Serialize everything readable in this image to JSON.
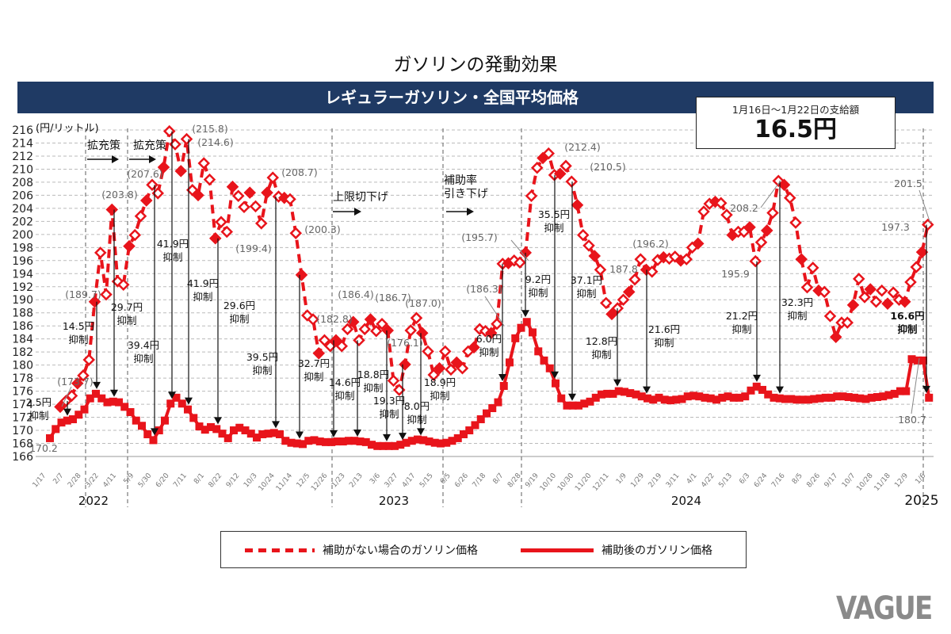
{
  "page": {
    "title": "ガソリンの発動効果",
    "band_title": "レギュラーガソリン・全国平均価格",
    "payment_box": {
      "period": "1月16日～1月22日の支給額",
      "amount": "16.5円"
    },
    "logo": "VAGUE"
  },
  "colors": {
    "series": "#e8141b",
    "band": "#1f3a64",
    "grid": "#bbbbbb",
    "annotation": "#222222",
    "value_label": "#666666"
  },
  "chart_data": {
    "type": "line",
    "ylabel": "(円/リットル)",
    "ylim": [
      166,
      216
    ],
    "yticks": [
      166,
      168,
      170,
      172,
      174,
      176,
      178,
      180,
      182,
      184,
      186,
      188,
      190,
      192,
      194,
      196,
      198,
      200,
      202,
      204,
      206,
      208,
      210,
      212,
      214,
      216
    ],
    "grid": true,
    "x_tick_labels": [
      "1/17",
      "2/7",
      "2/28",
      "3/22",
      "4/11",
      "5/9",
      "5/30",
      "6/20",
      "7/11",
      "8/1",
      "8/22",
      "9/12",
      "10/3",
      "10/24",
      "11/14",
      "12/5",
      "12/26",
      "1/23",
      "2/13",
      "3/6",
      "3/27",
      "4/17",
      "5/15",
      "6/5",
      "6/26",
      "7/18",
      "8/7",
      "8/28",
      "9/19",
      "10/10",
      "10/30",
      "11/20",
      "12/11",
      "1/9",
      "1/29",
      "2/19",
      "3/11",
      "4/1",
      "4/22",
      "5/13",
      "6/3",
      "6/24",
      "7/16",
      "8/5",
      "8/26",
      "9/17",
      "10/7",
      "10/28",
      "11/18",
      "12/9",
      "1/6"
    ],
    "year_labels": [
      "2022",
      "2023",
      "2024",
      "2025"
    ],
    "legend_placement": "bottom",
    "series": [
      {
        "name": "補助がない場合のガソリン価格",
        "style": "dashed-diamond",
        "values": [
          173.6,
          174.5,
          175.3,
          177.2,
          178.4,
          180.8,
          189.7,
          197.2,
          190.8,
          203.8,
          192.8,
          192.3,
          198.2,
          199.9,
          202.8,
          205.2,
          207.6,
          206.3,
          210.3,
          215.8,
          213.8,
          209.7,
          214.6,
          206.8,
          206.0,
          210.9,
          208.4,
          199.4,
          201.9,
          200.4,
          207.3,
          205.9,
          204.2,
          206.4,
          204.3,
          201.7,
          206.4,
          208.7,
          205.8,
          205.6,
          205.4,
          200.2,
          193.8,
          187.6,
          187.0,
          181.8,
          183.8,
          182.9,
          183.8,
          182.9,
          185.5,
          186.6,
          183.8,
          185.5,
          187.0,
          185.2,
          186.3,
          185.3,
          177.6,
          176.2,
          180.1,
          185.3,
          187.2,
          184.9,
          182.1,
          178.5,
          179.5,
          182.1,
          179.3,
          180.4,
          179.5,
          182.1,
          182.7,
          185.5,
          185.2,
          184.9,
          186.3,
          195.5,
          195.6,
          196.0,
          195.7,
          197.2,
          205.9,
          210.2,
          211.7,
          212.4,
          209.1,
          209.3,
          210.5,
          208.1,
          204.5,
          199.9,
          198.3,
          196.7,
          194.6,
          189.5,
          187.8,
          188.7,
          190.0,
          191.2,
          193.1,
          196.2,
          194.6,
          194.3,
          196.1,
          196.5,
          196.3,
          196.6,
          196.0,
          196.2,
          198.0,
          198.6,
          203.5,
          204.7,
          205.0,
          204.8,
          203.0,
          199.9,
          200.4,
          200.4,
          201.1,
          195.9,
          198.8,
          200.6,
          203.3,
          208.2,
          207.6,
          205.6,
          201.8,
          196.2,
          191.9,
          194.9,
          191.4,
          191.2,
          187.5,
          184.3,
          186.5,
          186.5,
          189.2,
          193.2,
          190.4,
          191.6,
          189.7,
          191.4,
          189.4,
          191.1,
          190.0,
          189.7,
          192.7,
          195.0,
          197.3,
          201.5
        ]
      },
      {
        "name": "補助後のガソリン価格",
        "style": "solid-square",
        "values": [
          168.8,
          170.2,
          171.2,
          171.5,
          171.7,
          172.4,
          173.2,
          174.9,
          175.6,
          174.9,
          174.3,
          174.4,
          174.3,
          173.6,
          172.8,
          171.5,
          170.7,
          169.4,
          168.5,
          170.0,
          171.5,
          174.1,
          175.0,
          174.1,
          173.2,
          171.9,
          170.6,
          170.1,
          170.5,
          170.2,
          169.5,
          168.8,
          170.0,
          170.4,
          170.0,
          169.5,
          168.9,
          169.4,
          169.5,
          169.6,
          169.4,
          168.4,
          168.1,
          168.0,
          167.9,
          168.4,
          168.5,
          168.3,
          168.2,
          168.2,
          168.3,
          168.3,
          168.4,
          168.4,
          168.3,
          168.2,
          167.8,
          167.6,
          167.6,
          167.6,
          167.6,
          167.8,
          168.1,
          168.4,
          168.6,
          168.5,
          168.3,
          168.1,
          168.0,
          168.1,
          168.4,
          168.8,
          169.4,
          170.0,
          170.8,
          171.7,
          172.6,
          173.4,
          174.3,
          176.8,
          180.4,
          184.1,
          185.7,
          186.6,
          185.0,
          182.1,
          180.7,
          179.5,
          177.2,
          174.9,
          173.8,
          173.8,
          173.8,
          174.1,
          174.4,
          175.0,
          175.5,
          175.6,
          175.6,
          176.0,
          175.9,
          175.7,
          175.5,
          175.2,
          174.9,
          174.7,
          175.0,
          174.7,
          174.6,
          174.7,
          174.8,
          175.2,
          175.3,
          175.2,
          175.0,
          174.9,
          174.7,
          175.0,
          175.2,
          175.0,
          175.0,
          175.2,
          176.1,
          176.7,
          176.2,
          175.5,
          175.0,
          174.9,
          174.8,
          174.8,
          174.7,
          174.7,
          174.7,
          174.8,
          174.9,
          175.0,
          175.0,
          175.2,
          175.2,
          175.1,
          175.0,
          174.9,
          174.8,
          175.0,
          175.1,
          175.2,
          175.4,
          175.6,
          176.0,
          176.0,
          180.9,
          180.7,
          180.7,
          175.0
        ]
      }
    ],
    "value_labels": [
      "(173.7)",
      "170.2",
      "(189.7)",
      "(203.8)",
      "(207.6)",
      "(215.8)",
      "(214.6)",
      "(199.4)",
      "(208.7)",
      "(200.3)",
      "(182.8)",
      "(186.4)",
      "(186.7)",
      "(176.1)",
      "(187.0)",
      "(186.3)",
      "(195.7)",
      "(212.4)",
      "(210.5)",
      "187.8",
      "(196.2)",
      "195.9",
      "208.2",
      "201.5",
      "197.3",
      "180.7"
    ],
    "suppression_labels": [
      {
        "amount": "2.5円",
        "text": "抑制"
      },
      {
        "amount": "14.5円",
        "text": "抑制"
      },
      {
        "amount": "29.7円",
        "text": "抑制"
      },
      {
        "amount": "39.4円",
        "text": "抑制"
      },
      {
        "amount": "41.9円",
        "text": "抑制"
      },
      {
        "amount": "41.9円",
        "text": "抑制"
      },
      {
        "amount": "29.6円",
        "text": "抑制"
      },
      {
        "amount": "39.5円",
        "text": "抑制"
      },
      {
        "amount": "32.7円",
        "text": "抑制"
      },
      {
        "amount": "14.6円",
        "text": "抑制"
      },
      {
        "amount": "18.8円",
        "text": "抑制"
      },
      {
        "amount": "19.3円",
        "text": "抑制"
      },
      {
        "amount": "8.0円",
        "text": "抑制"
      },
      {
        "amount": "18.9円",
        "text": "抑制"
      },
      {
        "amount": "6.0円",
        "text": "抑制"
      },
      {
        "amount": "9.2円",
        "text": "抑制"
      },
      {
        "amount": "35.5円",
        "text": "抑制"
      },
      {
        "amount": "37.1円",
        "text": "抑制"
      },
      {
        "amount": "12.8円",
        "text": "抑制"
      },
      {
        "amount": "21.6円",
        "text": "抑制"
      },
      {
        "amount": "21.2円",
        "text": "抑制"
      },
      {
        "amount": "32.3円",
        "text": "抑制"
      },
      {
        "amount": "16.6円",
        "text": "抑制"
      }
    ],
    "policy_annotations": [
      {
        "text": "拡充策"
      },
      {
        "text": "拡充策"
      },
      {
        "text": "上限切下げ"
      },
      {
        "text": "補助率",
        "text2": "引き下げ"
      }
    ]
  }
}
